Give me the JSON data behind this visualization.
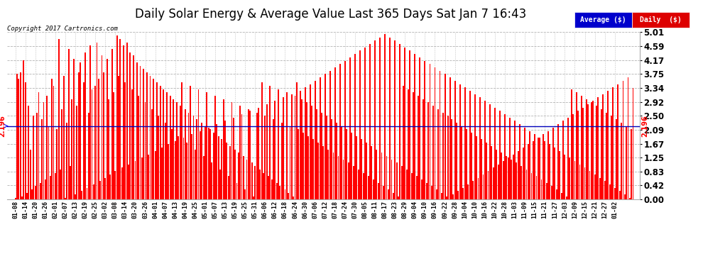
{
  "title": "Daily Solar Energy & Average Value Last 365 Days Sat Jan 7 16:43",
  "copyright": "Copyright 2017 Cartronics.com",
  "average_value": 2.196,
  "ylim": [
    0.0,
    5.01
  ],
  "yticks": [
    0.0,
    0.42,
    0.83,
    1.25,
    1.67,
    2.09,
    2.5,
    2.92,
    3.34,
    3.75,
    4.17,
    4.59,
    5.01
  ],
  "bar_color": "#ff0000",
  "avg_line_color": "#0000bb",
  "background_color": "#ffffff",
  "grid_color": "#aaaaaa",
  "legend_avg_color": "#0000cc",
  "legend_daily_color": "#dd0000",
  "title_fontsize": 12,
  "avg_label": "Average ($)",
  "daily_label": "Daily  ($)",
  "xtick_labels": [
    "01-08",
    "01-14",
    "01-20",
    "01-26",
    "02-01",
    "02-07",
    "02-13",
    "02-19",
    "02-25",
    "03-02",
    "03-08",
    "03-14",
    "03-20",
    "03-26",
    "04-01",
    "04-07",
    "04-13",
    "04-19",
    "04-25",
    "05-01",
    "05-07",
    "05-13",
    "05-19",
    "05-25",
    "05-31",
    "06-06",
    "06-12",
    "06-18",
    "06-24",
    "06-30",
    "07-06",
    "07-12",
    "07-18",
    "07-24",
    "07-30",
    "08-05",
    "08-11",
    "08-17",
    "08-23",
    "08-29",
    "09-04",
    "09-10",
    "09-16",
    "09-22",
    "09-28",
    "10-04",
    "10-10",
    "10-16",
    "10-22",
    "10-28",
    "11-03",
    "11-09",
    "11-15",
    "11-21",
    "11-27",
    "12-03",
    "12-09",
    "12-15",
    "12-21",
    "12-27",
    "01-02"
  ],
  "bar_values": [
    0.05,
    3.75,
    3.6,
    3.8,
    0.1,
    4.17,
    3.5,
    0.2,
    2.8,
    1.5,
    0.3,
    2.5,
    0.4,
    2.6,
    3.2,
    0.5,
    2.4,
    2.9,
    0.6,
    3.1,
    2.2,
    0.7,
    3.6,
    3.4,
    0.8,
    2.1,
    4.8,
    0.9,
    2.7,
    3.7,
    0.05,
    2.3,
    4.5,
    1.0,
    3.0,
    4.2,
    0.15,
    2.8,
    3.8,
    4.1,
    0.25,
    3.5,
    4.4,
    0.35,
    2.6,
    4.6,
    3.3,
    0.45,
    3.4,
    4.7,
    3.6,
    0.55,
    4.3,
    3.8,
    0.65,
    4.2,
    3.0,
    0.75,
    4.5,
    3.2,
    0.85,
    4.9,
    3.7,
    4.8,
    0.95,
    4.6,
    3.5,
    4.7,
    1.05,
    4.4,
    3.3,
    4.3,
    1.15,
    4.1,
    3.1,
    4.0,
    1.25,
    3.9,
    2.9,
    3.8,
    1.35,
    3.7,
    2.7,
    3.6,
    1.45,
    3.5,
    2.5,
    3.4,
    1.55,
    3.3,
    2.3,
    3.2,
    1.65,
    3.1,
    2.1,
    3.0,
    1.75,
    2.9,
    1.9,
    2.8,
    3.5,
    1.85,
    2.7,
    1.7,
    2.6,
    3.4,
    1.95,
    2.5,
    1.5,
    2.4,
    3.3,
    2.05,
    2.3,
    1.3,
    2.2,
    3.2,
    2.15,
    2.1,
    1.1,
    2.0,
    3.1,
    2.25,
    1.9,
    0.9,
    1.8,
    3.0,
    2.35,
    1.7,
    0.7,
    1.6,
    2.9,
    2.45,
    1.5,
    0.5,
    1.4,
    2.8,
    2.55,
    1.3,
    0.3,
    1.2,
    2.7,
    2.65,
    1.1,
    0.1,
    1.0,
    2.6,
    2.75,
    0.9,
    3.5,
    0.8,
    2.5,
    2.85,
    0.7,
    3.4,
    0.6,
    2.4,
    2.95,
    0.5,
    3.3,
    0.4,
    2.3,
    3.05,
    0.3,
    3.2,
    0.2,
    2.2,
    3.15,
    0.1,
    3.1,
    3.5,
    2.1,
    3.25,
    3.0,
    2.0,
    3.35,
    2.9,
    1.9,
    3.45,
    2.8,
    1.8,
    3.55,
    2.7,
    1.7,
    3.65,
    2.6,
    1.6,
    3.75,
    2.5,
    1.5,
    3.85,
    2.4,
    1.4,
    3.95,
    2.3,
    1.3,
    4.05,
    2.2,
    1.2,
    4.15,
    2.1,
    1.1,
    4.25,
    2.0,
    1.0,
    4.35,
    1.9,
    0.9,
    4.45,
    1.8,
    0.8,
    4.55,
    1.7,
    0.7,
    4.65,
    1.6,
    0.6,
    4.75,
    1.5,
    0.5,
    4.85,
    1.4,
    0.4,
    4.95,
    1.3,
    0.3,
    4.85,
    1.2,
    0.2,
    4.75,
    1.1,
    0.1,
    4.65,
    1.0,
    3.4,
    4.55,
    0.9,
    3.3,
    4.45,
    0.8,
    3.2,
    4.35,
    0.7,
    3.1,
    4.25,
    0.6,
    3.0,
    4.15,
    0.5,
    2.9,
    4.05,
    0.4,
    2.8,
    3.95,
    0.3,
    2.7,
    3.85,
    0.2,
    2.6,
    3.75,
    0.1,
    2.5,
    3.65,
    2.4,
    0.15,
    3.55,
    2.3,
    0.25,
    3.45,
    2.2,
    0.35,
    3.35,
    2.1,
    0.45,
    3.25,
    2.0,
    0.55,
    3.15,
    1.9,
    0.65,
    3.05,
    1.8,
    0.75,
    2.95,
    1.7,
    0.85,
    2.85,
    1.6,
    0.95,
    2.75,
    1.5,
    1.05,
    2.65,
    1.4,
    1.15,
    2.55,
    1.3,
    1.25,
    2.45,
    1.2,
    1.35,
    2.35,
    1.1,
    1.45,
    2.25,
    1.0,
    1.55,
    2.15,
    0.9,
    1.65,
    2.05,
    0.8,
    1.75,
    1.95,
    0.7,
    1.85,
    1.85,
    0.6,
    1.95,
    1.75,
    0.5,
    2.05,
    1.65,
    0.4,
    2.15,
    1.55,
    0.3,
    2.25,
    1.45,
    0.2,
    2.35,
    1.35,
    0.1,
    2.45,
    1.25,
    3.3,
    2.55,
    1.15,
    3.2,
    2.65,
    1.05,
    3.1,
    2.75,
    0.95,
    3.0,
    2.85,
    0.85,
    2.9,
    2.95,
    0.75,
    2.8,
    3.05,
    0.65,
    2.7,
    3.15,
    0.55,
    2.6,
    3.25,
    0.45,
    2.5,
    3.35,
    0.35,
    2.4,
    3.45,
    0.25,
    2.3,
    3.55,
    0.15,
    2.2,
    3.65,
    0.05,
    2.1,
    3.34
  ]
}
